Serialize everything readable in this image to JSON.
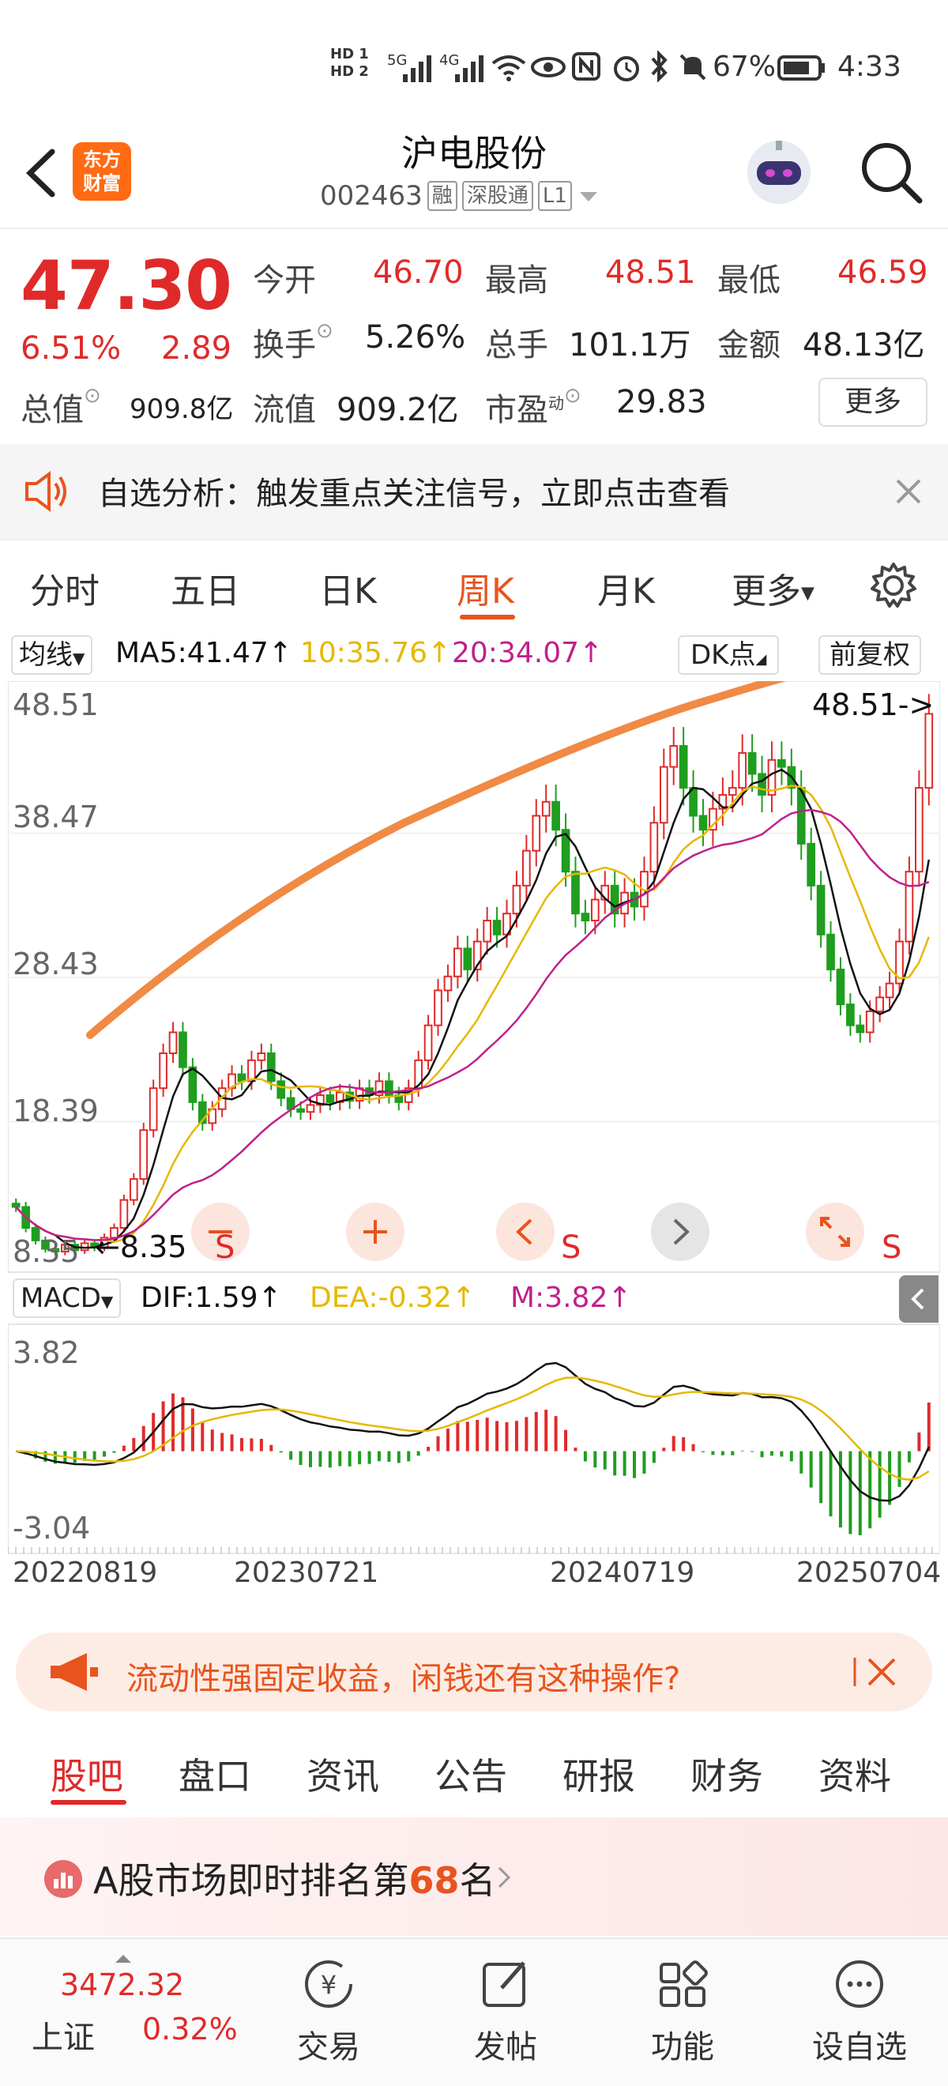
{
  "status_bar": {
    "battery_pct": "67%",
    "time": "4:33",
    "hd1": "HD 1",
    "hd2": "HD 2",
    "net1": "5G",
    "net2": "4G"
  },
  "header": {
    "logo_line1": "东方",
    "logo_line2": "财富",
    "stock_name": "沪电股份",
    "stock_code": "002463",
    "tags": [
      "融",
      "深股通",
      "L1"
    ]
  },
  "quote": {
    "price": "47.30",
    "change_pct": "6.51%",
    "change_amt": "2.89",
    "open_label": "今开",
    "open": "46.70",
    "high_label": "最高",
    "high": "48.51",
    "low_label": "最低",
    "low": "46.59",
    "turnover_label": "换手",
    "turnover": "5.26%",
    "volume_label": "总手",
    "volume": "101.1万",
    "amount_label": "金额",
    "amount": "48.13亿",
    "mktcap_label": "总值",
    "mktcap": "909.8亿",
    "float_label": "流值",
    "float": "909.2亿",
    "pe_label": "市盈",
    "pe_sup": "动",
    "pe": "29.83",
    "more_button": "更多"
  },
  "notice": {
    "text": "自选分析：触发重点关注信号，立即点击查看"
  },
  "kline_tabs": {
    "items": [
      "分时",
      "五日",
      "日K",
      "周K",
      "月K",
      "更多"
    ],
    "active": "周K"
  },
  "ma_row": {
    "ma_button": "均线",
    "ma5": "MA5:41.47",
    "ma10": "10:35.76",
    "ma20": "20:34.07",
    "dk_button": "DK点",
    "fq_button": "前复权",
    "colors": {
      "ma5": "#111111",
      "ma10": "#e6b800",
      "ma20": "#c0208c"
    }
  },
  "chart_data": {
    "type": "candlestick",
    "y_ticks": [
      "48.51",
      "38.47",
      "28.43",
      "18.39",
      "8.35"
    ],
    "ylim": [
      8.35,
      48.51
    ],
    "high_marker": "48.51->",
    "low_marker": "8.35",
    "x_labels": [
      "20220819",
      "20230721",
      "20240719",
      "20250704"
    ],
    "macd": {
      "label": "MACD",
      "dif": "DIF:1.59",
      "dea": "DEA:-0.32",
      "m": "M:3.82",
      "y_ticks": [
        "3.82",
        "-3.04"
      ],
      "ylim": [
        -3.04,
        3.82
      ]
    },
    "colors": {
      "up": "#e02a2a",
      "down": "#1f9e1f",
      "trend": "#f08a45"
    },
    "closes": [
      12.0,
      10.5,
      9.6,
      9.0,
      8.8,
      9.3,
      8.9,
      9.4,
      9.1,
      9.8,
      10.5,
      12.5,
      14.0,
      17.5,
      20.5,
      23.0,
      24.5,
      22.0,
      19.5,
      18.0,
      19.0,
      20.5,
      21.5,
      21.0,
      22.5,
      23.0,
      21.0,
      19.8,
      19.0,
      18.8,
      19.3,
      20.0,
      19.5,
      20.2,
      19.6,
      20.5,
      20.0,
      21.0,
      20.0,
      19.5,
      20.5,
      22.5,
      25.0,
      27.5,
      28.5,
      30.5,
      29.0,
      31.0,
      32.5,
      31.5,
      33.0,
      35.0,
      37.5,
      40.0,
      41.0,
      39.0,
      36.0,
      33.0,
      32.5,
      34.0,
      35.0,
      33.0,
      34.5,
      33.5,
      36.0,
      39.5,
      43.5,
      45.0,
      42.0,
      40.0,
      39.0,
      40.5,
      41.5,
      42.0,
      44.5,
      43.0,
      41.5,
      44.0,
      43.5,
      42.0,
      38.0,
      35.0,
      31.5,
      29.0,
      26.5,
      25.0,
      24.5,
      26.0,
      27.0,
      28.0,
      31.0,
      36.0,
      42.0,
      47.3
    ]
  },
  "chart_buttons": {
    "s_label": "S"
  },
  "ad": {
    "text": "流动性强固定收益，闲钱还有这种操作?"
  },
  "info_tabs": {
    "items": [
      "股吧",
      "盘口",
      "资讯",
      "公告",
      "研报",
      "财务",
      "资料"
    ],
    "active": "股吧"
  },
  "rank": {
    "prefix": "A股市场即时排名第",
    "rank": "68",
    "suffix": "名"
  },
  "bottom_nav": {
    "index_value": "3472.32",
    "index_name": "上证",
    "index_change": "0.32%",
    "items": [
      "交易",
      "发帖",
      "功能",
      "设自选"
    ]
  }
}
